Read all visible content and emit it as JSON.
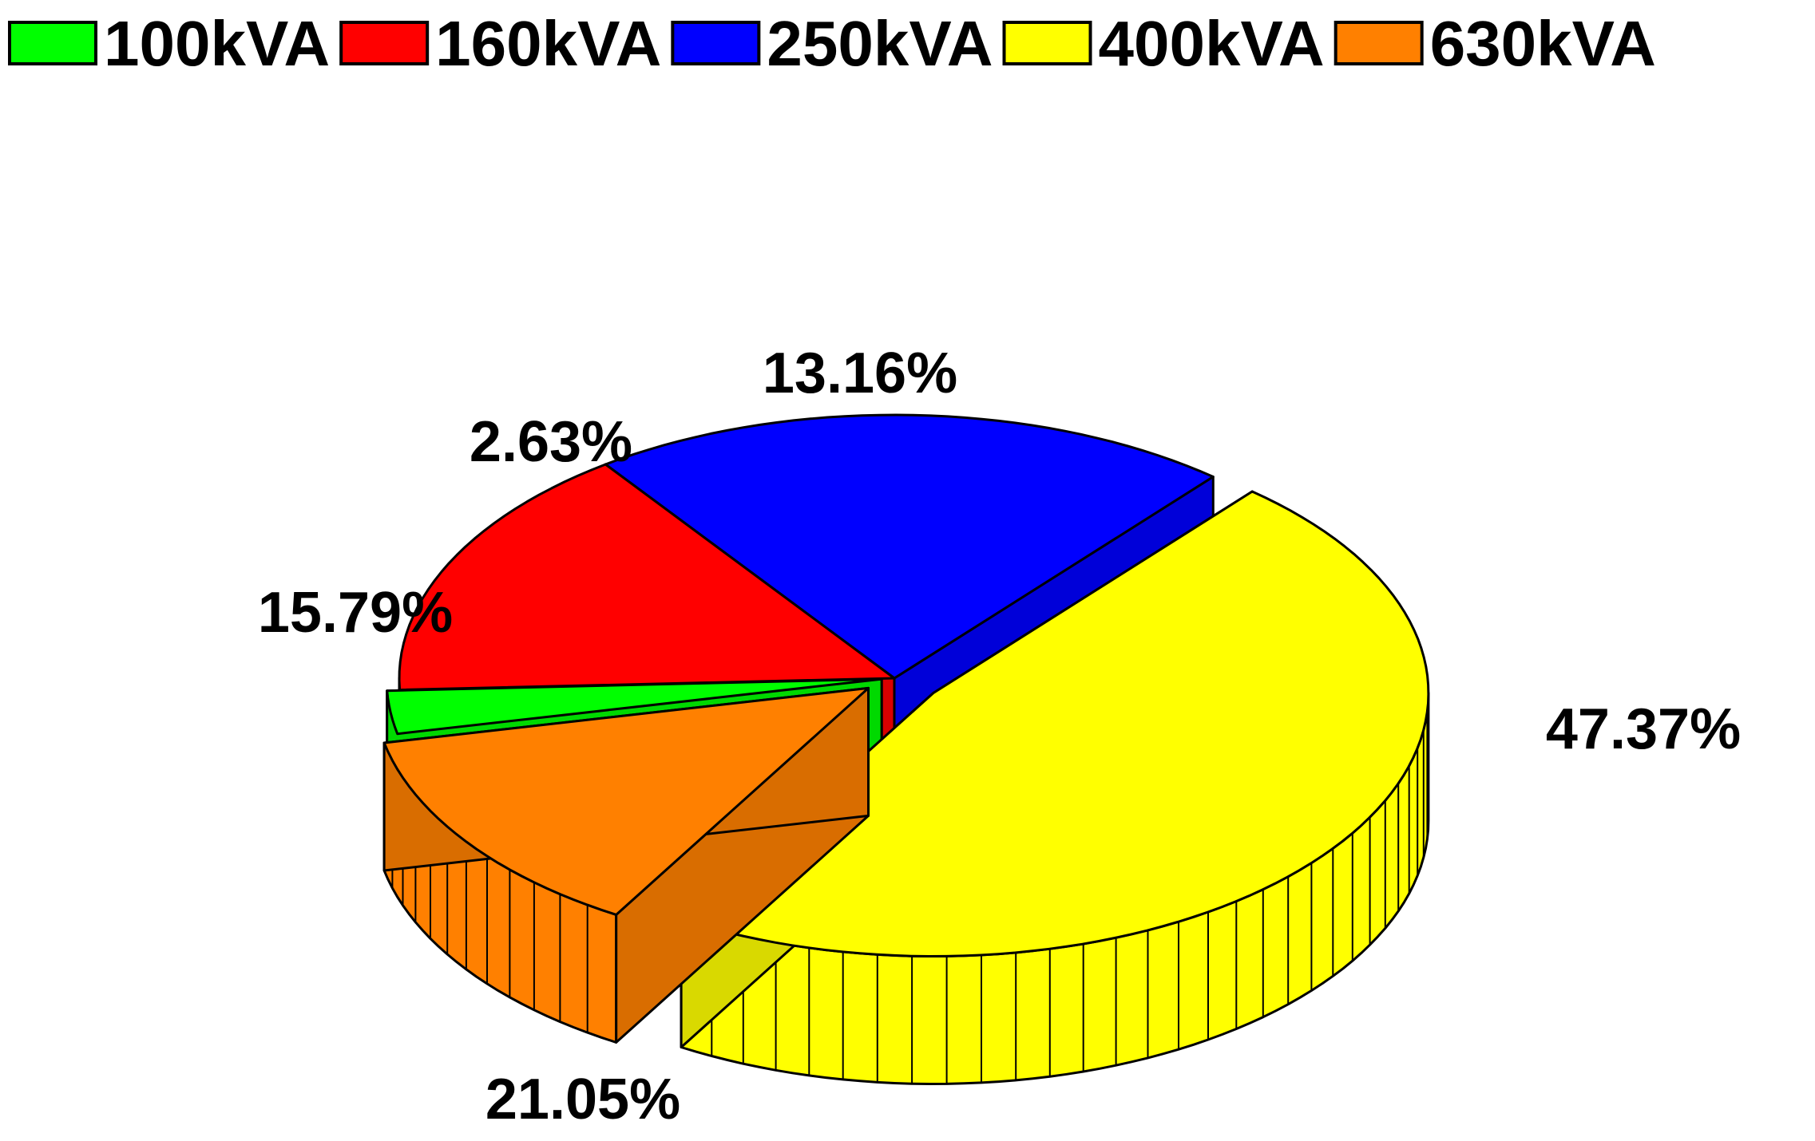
{
  "chart_data": {
    "type": "pie",
    "style": "3d-exploded",
    "legend_position": "top",
    "slices": [
      {
        "name": "100kVA",
        "value": 2.63,
        "label": "2.63%",
        "color": "#00ff00"
      },
      {
        "name": "160kVA",
        "value": 15.79,
        "label": "15.79%",
        "color": "#ff0000"
      },
      {
        "name": "250kVA",
        "value": 21.05,
        "label": "21.05%",
        "color": "#0000ff"
      },
      {
        "name": "400kVA",
        "value": 47.37,
        "label": "47.37%",
        "color": "#ffff00"
      },
      {
        "name": "630kVA",
        "value": 13.16,
        "label": "13.16%",
        "color": "#ff8000"
      }
    ]
  }
}
